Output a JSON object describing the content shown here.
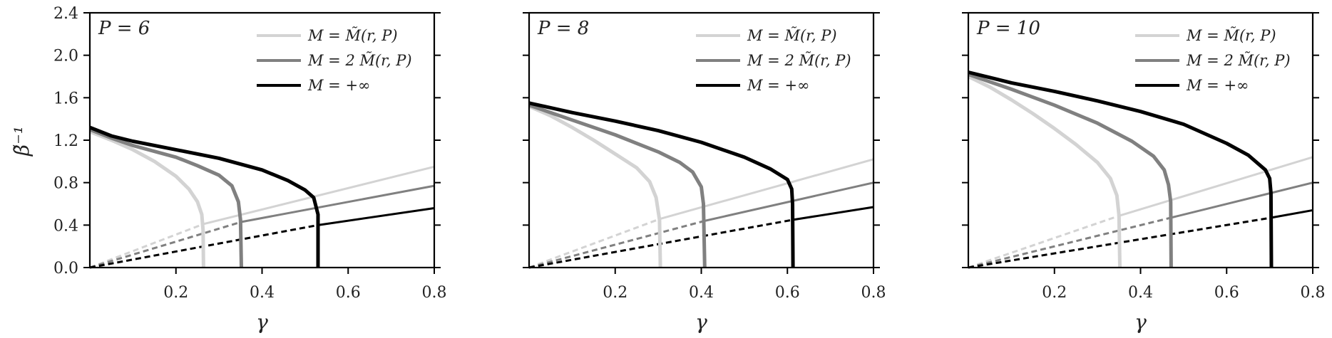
{
  "chart_data": [
    {
      "type": "line",
      "panel_label": "P = 6",
      "xlabel": "γ",
      "ylabel": "β̃⁻¹",
      "xlim": [
        0.0,
        0.8
      ],
      "ylim": [
        0.0,
        2.4
      ],
      "xticks": [
        "0.2",
        "0.4",
        "0.6",
        "0.8"
      ],
      "yticks": [
        "0.0",
        "0.4",
        "0.8",
        "1.2",
        "1.6",
        "2.0",
        "2.4"
      ],
      "legend_position": "top-right",
      "grid": false,
      "series": [
        {
          "name": "M = M̃(r, P)",
          "color": "#d3d3d3",
          "curve": [
            [
              0.0,
              1.28
            ],
            [
              0.05,
              1.2
            ],
            [
              0.1,
              1.11
            ],
            [
              0.15,
              1.0
            ],
            [
              0.2,
              0.86
            ],
            [
              0.23,
              0.74
            ],
            [
              0.25,
              0.62
            ],
            [
              0.26,
              0.5
            ],
            [
              0.263,
              0.35
            ],
            [
              0.264,
              0.0
            ]
          ],
          "linear_dashed": [
            [
              0.0,
              0.0
            ],
            [
              0.264,
              0.41
            ]
          ],
          "linear_solid": [
            [
              0.264,
              0.41
            ],
            [
              0.8,
              0.95
            ]
          ]
        },
        {
          "name": "M = 2 M̃(r, P)",
          "color": "#808080",
          "curve": [
            [
              0.0,
              1.3
            ],
            [
              0.05,
              1.22
            ],
            [
              0.1,
              1.15
            ],
            [
              0.2,
              1.04
            ],
            [
              0.25,
              0.96
            ],
            [
              0.3,
              0.87
            ],
            [
              0.33,
              0.77
            ],
            [
              0.345,
              0.62
            ],
            [
              0.35,
              0.45
            ],
            [
              0.352,
              0.0
            ]
          ],
          "linear_dashed": [
            [
              0.0,
              0.0
            ],
            [
              0.352,
              0.43
            ]
          ],
          "linear_solid": [
            [
              0.352,
              0.43
            ],
            [
              0.8,
              0.77
            ]
          ]
        },
        {
          "name": "M = +∞",
          "color": "#000000",
          "curve": [
            [
              0.0,
              1.32
            ],
            [
              0.05,
              1.24
            ],
            [
              0.1,
              1.19
            ],
            [
              0.2,
              1.11
            ],
            [
              0.3,
              1.03
            ],
            [
              0.4,
              0.92
            ],
            [
              0.46,
              0.82
            ],
            [
              0.5,
              0.73
            ],
            [
              0.52,
              0.66
            ],
            [
              0.53,
              0.5
            ],
            [
              0.53,
              0.0
            ]
          ],
          "linear_dashed": [
            [
              0.0,
              0.0
            ],
            [
              0.53,
              0.4
            ]
          ],
          "linear_solid": [
            [
              0.53,
              0.4
            ],
            [
              0.8,
              0.56
            ]
          ]
        }
      ]
    },
    {
      "type": "line",
      "panel_label": "P = 8",
      "xlabel": "γ",
      "xlim": [
        0.0,
        0.8
      ],
      "ylim": [
        0.0,
        2.4
      ],
      "xticks": [
        "0.2",
        "0.4",
        "0.6",
        "0.8"
      ],
      "legend_position": "top-right",
      "grid": false,
      "series": [
        {
          "name": "M = M̃(r, P)",
          "color": "#d3d3d3",
          "curve": [
            [
              0.0,
              1.52
            ],
            [
              0.05,
              1.43
            ],
            [
              0.1,
              1.32
            ],
            [
              0.15,
              1.2
            ],
            [
              0.2,
              1.07
            ],
            [
              0.25,
              0.94
            ],
            [
              0.28,
              0.81
            ],
            [
              0.295,
              0.66
            ],
            [
              0.303,
              0.45
            ],
            [
              0.305,
              0.0
            ]
          ],
          "linear_dashed": [
            [
              0.0,
              0.0
            ],
            [
              0.305,
              0.46
            ]
          ],
          "linear_solid": [
            [
              0.305,
              0.46
            ],
            [
              0.8,
              1.02
            ]
          ]
        },
        {
          "name": "M = 2 M̃(r, P)",
          "color": "#808080",
          "curve": [
            [
              0.0,
              1.53
            ],
            [
              0.05,
              1.46
            ],
            [
              0.1,
              1.39
            ],
            [
              0.2,
              1.25
            ],
            [
              0.3,
              1.09
            ],
            [
              0.35,
              0.99
            ],
            [
              0.38,
              0.9
            ],
            [
              0.4,
              0.76
            ],
            [
              0.405,
              0.6
            ],
            [
              0.408,
              0.0
            ]
          ],
          "linear_dashed": [
            [
              0.0,
              0.0
            ],
            [
              0.408,
              0.44
            ]
          ],
          "linear_solid": [
            [
              0.408,
              0.44
            ],
            [
              0.8,
              0.8
            ]
          ]
        },
        {
          "name": "M = +∞",
          "color": "#000000",
          "curve": [
            [
              0.0,
              1.55
            ],
            [
              0.1,
              1.46
            ],
            [
              0.2,
              1.38
            ],
            [
              0.3,
              1.29
            ],
            [
              0.4,
              1.18
            ],
            [
              0.5,
              1.04
            ],
            [
              0.56,
              0.93
            ],
            [
              0.6,
              0.83
            ],
            [
              0.61,
              0.74
            ],
            [
              0.612,
              0.6
            ],
            [
              0.613,
              0.0
            ]
          ],
          "linear_dashed": [
            [
              0.0,
              0.0
            ],
            [
              0.613,
              0.45
            ]
          ],
          "linear_solid": [
            [
              0.613,
              0.45
            ],
            [
              0.8,
              0.57
            ]
          ]
        }
      ]
    },
    {
      "type": "line",
      "panel_label": "P = 10",
      "xlabel": "γ",
      "xlim": [
        0.0,
        0.8
      ],
      "ylim": [
        0.0,
        2.4
      ],
      "xticks": [
        "0.2",
        "0.4",
        "0.6",
        "0.8"
      ],
      "legend_position": "top-right",
      "grid": false,
      "series": [
        {
          "name": "M = M̃(r, P)",
          "color": "#d3d3d3",
          "curve": [
            [
              0.0,
              1.8
            ],
            [
              0.05,
              1.7
            ],
            [
              0.1,
              1.58
            ],
            [
              0.15,
              1.45
            ],
            [
              0.2,
              1.31
            ],
            [
              0.25,
              1.16
            ],
            [
              0.3,
              0.99
            ],
            [
              0.33,
              0.84
            ],
            [
              0.345,
              0.68
            ],
            [
              0.35,
              0.49
            ],
            [
              0.352,
              0.0
            ]
          ],
          "linear_dashed": [
            [
              0.0,
              0.0
            ],
            [
              0.352,
              0.49
            ]
          ],
          "linear_solid": [
            [
              0.352,
              0.49
            ],
            [
              0.8,
              1.04
            ]
          ]
        },
        {
          "name": "M = 2 M̃(r, P)",
          "color": "#808080",
          "curve": [
            [
              0.0,
              1.82
            ],
            [
              0.1,
              1.68
            ],
            [
              0.2,
              1.53
            ],
            [
              0.3,
              1.36
            ],
            [
              0.38,
              1.19
            ],
            [
              0.43,
              1.05
            ],
            [
              0.455,
              0.92
            ],
            [
              0.465,
              0.78
            ],
            [
              0.47,
              0.62
            ],
            [
              0.471,
              0.0
            ]
          ],
          "linear_dashed": [
            [
              0.0,
              0.0
            ],
            [
              0.471,
              0.47
            ]
          ],
          "linear_solid": [
            [
              0.471,
              0.47
            ],
            [
              0.8,
              0.8
            ]
          ]
        },
        {
          "name": "M = +∞",
          "color": "#000000",
          "curve": [
            [
              0.0,
              1.84
            ],
            [
              0.1,
              1.74
            ],
            [
              0.2,
              1.66
            ],
            [
              0.3,
              1.57
            ],
            [
              0.4,
              1.47
            ],
            [
              0.5,
              1.35
            ],
            [
              0.6,
              1.17
            ],
            [
              0.65,
              1.06
            ],
            [
              0.69,
              0.92
            ],
            [
              0.7,
              0.84
            ],
            [
              0.703,
              0.7
            ],
            [
              0.704,
              0.0
            ]
          ],
          "linear_dashed": [
            [
              0.0,
              0.0
            ],
            [
              0.704,
              0.47
            ]
          ],
          "linear_solid": [
            [
              0.704,
              0.47
            ],
            [
              0.8,
              0.54
            ]
          ]
        }
      ]
    }
  ]
}
